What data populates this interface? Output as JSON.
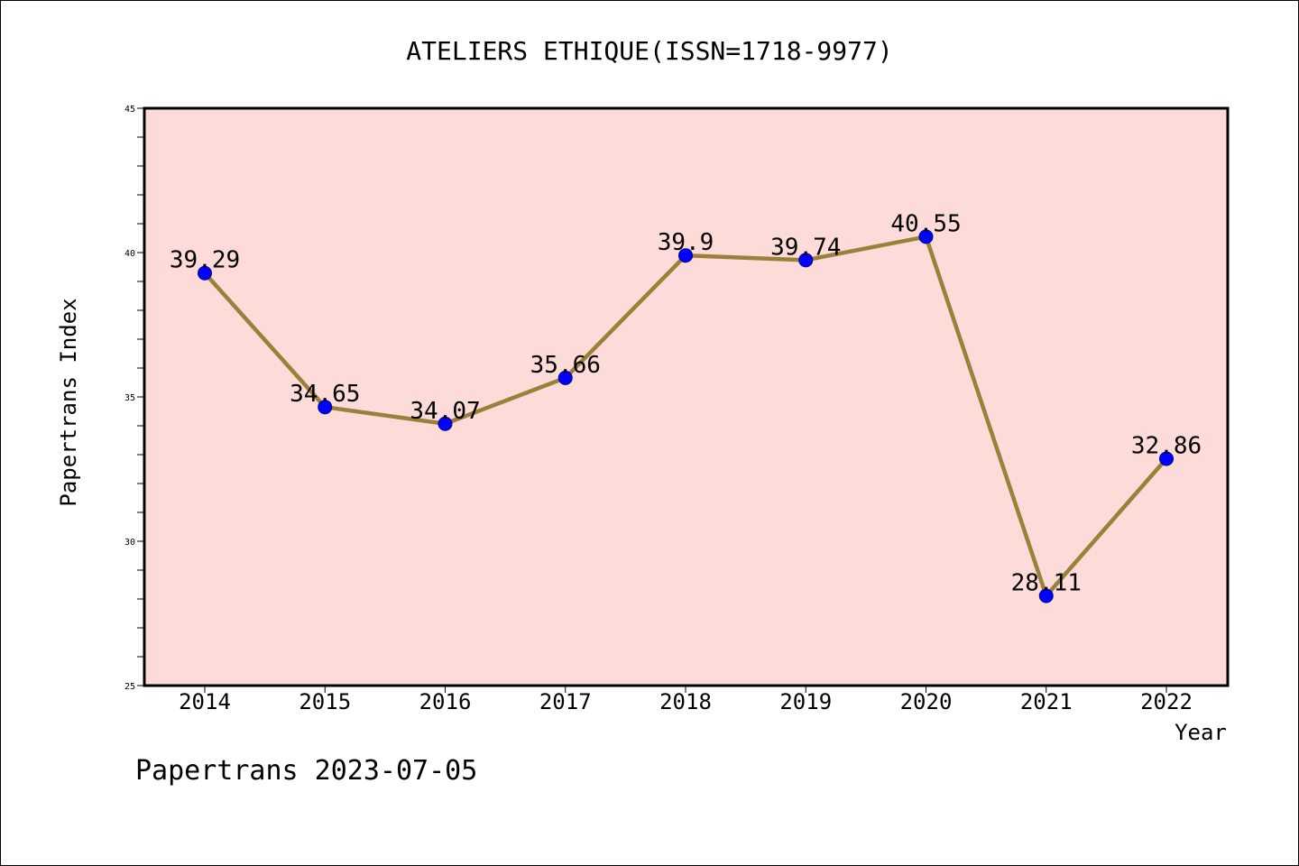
{
  "chart_data": {
    "type": "line",
    "title": "ATELIERS ETHIQUE(ISSN=1718-9977)",
    "xlabel": "Year",
    "ylabel": "Papertrans Index",
    "categories": [
      "2014",
      "2015",
      "2016",
      "2017",
      "2018",
      "2019",
      "2020",
      "2021",
      "2022"
    ],
    "values": [
      39.29,
      34.65,
      34.07,
      35.66,
      39.9,
      39.74,
      40.55,
      28.11,
      32.86
    ],
    "value_labels": [
      "39.29",
      "34.65",
      "34.07",
      "35.66",
      "39.9",
      "39.74",
      "40.55",
      "28.11",
      "32.86"
    ],
    "ylim": [
      25,
      45
    ],
    "yticks": [
      "25",
      "30",
      "35",
      "40",
      "45"
    ],
    "grid": false,
    "colors": {
      "plot_background": "#fddbd8",
      "line": "#9b7f3a",
      "marker": "#0000ff"
    }
  },
  "footer": {
    "text": "Papertrans 2023-07-05"
  }
}
